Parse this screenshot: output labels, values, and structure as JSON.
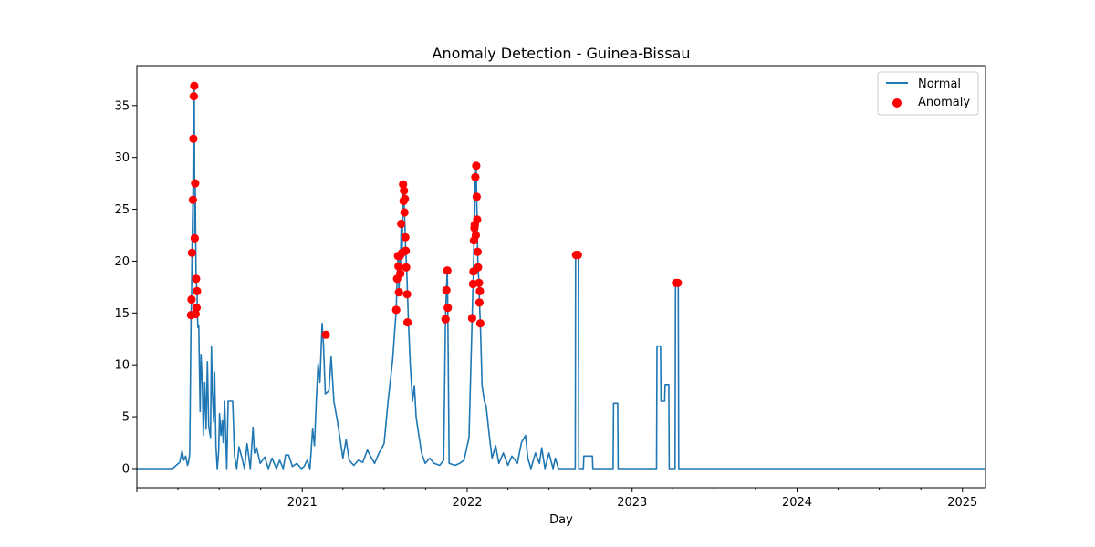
{
  "chart_data": {
    "type": "line",
    "title": "Anomaly Detection - Guinea-Bissau",
    "xlabel": "Day",
    "ylabel": "",
    "xlim": [
      "2020-01-01",
      "2025-02-21"
    ],
    "ylim": [
      -1.85,
      38.85
    ],
    "grid": false,
    "legend_position": "upper-right",
    "x_tick_labels": [
      "2021",
      "2022",
      "2023",
      "2024",
      "2025"
    ],
    "y_tick_labels": [
      "0",
      "5",
      "10",
      "15",
      "20",
      "25",
      "30",
      "35"
    ],
    "colors": {
      "normal": "#1f77b4",
      "anomaly": "#ff0000"
    },
    "series": [
      {
        "name": "Normal",
        "type": "line",
        "points": [
          [
            "2020-01-01",
            0
          ],
          [
            "2020-03-20",
            0
          ],
          [
            "2020-04-05",
            0.6
          ],
          [
            "2020-04-10",
            1.7
          ],
          [
            "2020-04-14",
            0.8
          ],
          [
            "2020-04-18",
            1.2
          ],
          [
            "2020-04-22",
            0.3
          ],
          [
            "2020-04-24",
            0.6
          ],
          [
            "2020-04-27",
            1.4
          ],
          [
            "2020-04-30",
            14.8
          ],
          [
            "2020-05-01",
            16.3
          ],
          [
            "2020-05-02",
            20.8
          ],
          [
            "2020-05-04",
            25.9
          ],
          [
            "2020-05-05",
            31.8
          ],
          [
            "2020-05-06",
            35.9
          ],
          [
            "2020-05-07",
            36.9
          ],
          [
            "2020-05-08",
            22.2
          ],
          [
            "2020-05-09",
            27.5
          ],
          [
            "2020-05-11",
            18.3
          ],
          [
            "2020-05-13",
            17.1
          ],
          [
            "2020-05-14",
            14.7
          ],
          [
            "2020-05-15",
            13.6
          ],
          [
            "2020-05-17",
            13.8
          ],
          [
            "2020-05-20",
            5.5
          ],
          [
            "2020-05-22",
            11
          ],
          [
            "2020-05-25",
            8
          ],
          [
            "2020-05-27",
            3.2
          ],
          [
            "2020-05-30",
            8.3
          ],
          [
            "2020-06-02",
            3.8
          ],
          [
            "2020-06-05",
            10.3
          ],
          [
            "2020-06-08",
            4.1
          ],
          [
            "2020-06-12",
            3
          ],
          [
            "2020-06-14",
            11.8
          ],
          [
            "2020-06-16",
            7.5
          ],
          [
            "2020-06-19",
            4.5
          ],
          [
            "2020-06-21",
            9.3
          ],
          [
            "2020-06-24",
            2.1
          ],
          [
            "2020-06-27",
            0
          ],
          [
            "2020-06-30",
            1.6
          ],
          [
            "2020-07-02",
            5.3
          ],
          [
            "2020-07-05",
            3.2
          ],
          [
            "2020-07-08",
            4.6
          ],
          [
            "2020-07-10",
            2.5
          ],
          [
            "2020-07-13",
            6.5
          ],
          [
            "2020-07-18",
            0
          ],
          [
            "2020-07-21",
            6.5
          ],
          [
            "2020-07-31",
            6.5
          ],
          [
            "2020-08-04",
            1.2
          ],
          [
            "2020-08-09",
            0
          ],
          [
            "2020-08-14",
            2.1
          ],
          [
            "2020-08-20",
            1.1
          ],
          [
            "2020-08-26",
            0
          ],
          [
            "2020-09-01",
            2.4
          ],
          [
            "2020-09-08",
            0
          ],
          [
            "2020-09-14",
            4
          ],
          [
            "2020-09-17",
            1.5
          ],
          [
            "2020-09-22",
            2
          ],
          [
            "2020-09-30",
            0.5
          ],
          [
            "2020-10-10",
            1.1
          ],
          [
            "2020-10-18",
            0
          ],
          [
            "2020-10-26",
            1
          ],
          [
            "2020-11-05",
            0
          ],
          [
            "2020-11-12",
            0.8
          ],
          [
            "2020-11-20",
            0
          ],
          [
            "2020-11-25",
            1.3
          ],
          [
            "2020-12-02",
            1.3
          ],
          [
            "2020-12-10",
            0.2
          ],
          [
            "2020-12-20",
            0.5
          ],
          [
            "2020-12-30",
            0
          ],
          [
            "2021-01-05",
            0.2
          ],
          [
            "2021-01-12",
            0.8
          ],
          [
            "2021-01-18",
            0
          ],
          [
            "2021-01-24",
            3.8
          ],
          [
            "2021-01-28",
            2.2
          ],
          [
            "2021-02-01",
            6.5
          ],
          [
            "2021-02-05",
            10.1
          ],
          [
            "2021-02-09",
            8.3
          ],
          [
            "2021-02-14",
            14
          ],
          [
            "2021-02-17",
            11.9
          ],
          [
            "2021-02-21",
            7.2
          ],
          [
            "2021-03-01",
            7.5
          ],
          [
            "2021-03-06",
            10.8
          ],
          [
            "2021-03-12",
            6.5
          ],
          [
            "2021-03-20",
            4.5
          ],
          [
            "2021-04-01",
            1
          ],
          [
            "2021-04-08",
            2.8
          ],
          [
            "2021-04-15",
            0.8
          ],
          [
            "2021-04-25",
            0.3
          ],
          [
            "2021-05-05",
            0.8
          ],
          [
            "2021-05-15",
            0.6
          ],
          [
            "2021-05-25",
            1.8
          ],
          [
            "2021-06-01",
            1.2
          ],
          [
            "2021-06-10",
            0.5
          ],
          [
            "2021-06-20",
            1.5
          ],
          [
            "2021-07-01",
            2.4
          ],
          [
            "2021-07-10",
            6.5
          ],
          [
            "2021-07-20",
            10.5
          ],
          [
            "2021-07-28",
            15.3
          ],
          [
            "2021-07-30",
            18.3
          ],
          [
            "2021-08-01",
            20.5
          ],
          [
            "2021-08-02",
            19.5
          ],
          [
            "2021-08-03",
            17
          ],
          [
            "2021-08-05",
            20.5
          ],
          [
            "2021-08-06",
            18.8
          ],
          [
            "2021-08-08",
            23.6
          ],
          [
            "2021-08-10",
            20.8
          ],
          [
            "2021-08-12",
            27.4
          ],
          [
            "2021-08-13",
            25.8
          ],
          [
            "2021-08-14",
            26.8
          ],
          [
            "2021-08-15",
            24.7
          ],
          [
            "2021-08-17",
            22.3
          ],
          [
            "2021-08-18",
            21
          ],
          [
            "2021-08-20",
            19.4
          ],
          [
            "2021-08-22",
            16.8
          ],
          [
            "2021-08-24",
            14.1
          ],
          [
            "2021-08-28",
            10
          ],
          [
            "2021-09-02",
            6.5
          ],
          [
            "2021-09-06",
            8
          ],
          [
            "2021-09-10",
            5
          ],
          [
            "2021-09-15",
            3.5
          ],
          [
            "2021-09-22",
            1.5
          ],
          [
            "2021-09-30",
            0.5
          ],
          [
            "2021-10-10",
            1
          ],
          [
            "2021-10-20",
            0.5
          ],
          [
            "2021-11-01",
            0.3
          ],
          [
            "2021-11-10",
            0.8
          ],
          [
            "2021-11-14",
            14.4
          ],
          [
            "2021-11-16",
            17.2
          ],
          [
            "2021-11-18",
            19.1
          ],
          [
            "2021-11-19",
            15.5
          ],
          [
            "2021-11-22",
            0.5
          ],
          [
            "2021-12-05",
            0.3
          ],
          [
            "2021-12-15",
            0.5
          ],
          [
            "2021-12-25",
            0.8
          ],
          [
            "2022-01-05",
            3
          ],
          [
            "2022-01-12",
            14.5
          ],
          [
            "2022-01-14",
            17.8
          ],
          [
            "2022-01-15",
            19
          ],
          [
            "2022-01-16",
            22
          ],
          [
            "2022-01-17",
            23.2
          ],
          [
            "2022-01-19",
            28.1
          ],
          [
            "2022-01-21",
            29.2
          ],
          [
            "2022-01-22",
            26.2
          ],
          [
            "2022-01-23",
            24
          ],
          [
            "2022-01-24",
            20.9
          ],
          [
            "2022-01-25",
            19.4
          ],
          [
            "2022-01-27",
            17.9
          ],
          [
            "2022-01-28",
            16
          ],
          [
            "2022-01-30",
            14
          ],
          [
            "2022-02-03",
            8
          ],
          [
            "2022-02-08",
            6.5
          ],
          [
            "2022-02-12",
            6
          ],
          [
            "2022-02-18",
            3.5
          ],
          [
            "2022-02-25",
            1
          ],
          [
            "2022-03-05",
            2.2
          ],
          [
            "2022-03-12",
            0.5
          ],
          [
            "2022-03-22",
            1.5
          ],
          [
            "2022-04-01",
            0.3
          ],
          [
            "2022-04-10",
            1.2
          ],
          [
            "2022-04-22",
            0.5
          ],
          [
            "2022-05-01",
            2.5
          ],
          [
            "2022-05-10",
            3.2
          ],
          [
            "2022-05-15",
            1
          ],
          [
            "2022-05-22",
            0
          ],
          [
            "2022-06-01",
            1.5
          ],
          [
            "2022-06-10",
            0.5
          ],
          [
            "2022-06-15",
            2
          ],
          [
            "2022-06-22",
            0
          ],
          [
            "2022-07-01",
            1.5
          ],
          [
            "2022-07-10",
            0
          ],
          [
            "2022-07-15",
            1
          ],
          [
            "2022-07-22",
            0
          ],
          [
            "2022-08-28",
            0
          ],
          [
            "2022-08-29",
            20.6
          ],
          [
            "2022-09-04",
            20.6
          ],
          [
            "2022-09-05",
            0
          ],
          [
            "2022-09-15",
            0
          ],
          [
            "2022-09-16",
            1.2
          ],
          [
            "2022-10-05",
            1.2
          ],
          [
            "2022-10-06",
            0
          ],
          [
            "2022-11-20",
            0
          ],
          [
            "2022-11-21",
            6.3
          ],
          [
            "2022-11-30",
            6.3
          ],
          [
            "2022-12-01",
            0
          ],
          [
            "2023-01-01",
            0
          ],
          [
            "2023-02-24",
            0
          ],
          [
            "2023-02-25",
            11.8
          ],
          [
            "2023-03-05",
            11.8
          ],
          [
            "2023-03-06",
            6.5
          ],
          [
            "2023-03-14",
            6.5
          ],
          [
            "2023-03-15",
            8.1
          ],
          [
            "2023-03-23",
            8.1
          ],
          [
            "2023-03-24",
            0
          ],
          [
            "2023-04-06",
            0
          ],
          [
            "2023-04-07",
            17.9
          ],
          [
            "2023-04-13",
            17.9
          ],
          [
            "2023-04-14",
            0
          ],
          [
            "2025-02-21",
            0
          ]
        ]
      },
      {
        "name": "Anomaly",
        "type": "scatter",
        "points": [
          [
            "2020-04-30",
            14.8
          ],
          [
            "2020-05-01",
            16.3
          ],
          [
            "2020-05-02",
            20.8
          ],
          [
            "2020-05-04",
            25.9
          ],
          [
            "2020-05-05",
            31.8
          ],
          [
            "2020-05-06",
            35.9
          ],
          [
            "2020-05-07",
            36.9
          ],
          [
            "2020-05-08",
            22.2
          ],
          [
            "2020-05-09",
            27.5
          ],
          [
            "2020-05-11",
            18.3
          ],
          [
            "2020-05-13",
            17.1
          ],
          [
            "2020-05-12",
            15.5
          ],
          [
            "2020-05-10",
            14.9
          ],
          [
            "2021-02-22",
            12.9
          ],
          [
            "2021-07-28",
            15.3
          ],
          [
            "2021-07-30",
            18.3
          ],
          [
            "2021-08-01",
            20.5
          ],
          [
            "2021-08-02",
            19.5
          ],
          [
            "2021-08-03",
            17
          ],
          [
            "2021-08-05",
            20.5
          ],
          [
            "2021-08-06",
            18.8
          ],
          [
            "2021-08-08",
            23.6
          ],
          [
            "2021-08-10",
            20.8
          ],
          [
            "2021-08-12",
            27.4
          ],
          [
            "2021-08-13",
            25.8
          ],
          [
            "2021-08-14",
            26.8
          ],
          [
            "2021-08-15",
            24.7
          ],
          [
            "2021-08-16",
            26
          ],
          [
            "2021-08-17",
            22.3
          ],
          [
            "2021-08-18",
            21
          ],
          [
            "2021-08-19",
            19.4
          ],
          [
            "2021-08-21",
            16.8
          ],
          [
            "2021-08-22",
            14.1
          ],
          [
            "2021-11-14",
            14.4
          ],
          [
            "2021-11-16",
            17.2
          ],
          [
            "2021-11-18",
            19.1
          ],
          [
            "2021-11-19",
            15.5
          ],
          [
            "2022-01-12",
            14.5
          ],
          [
            "2022-01-14",
            17.8
          ],
          [
            "2022-01-15",
            19
          ],
          [
            "2022-01-16",
            22
          ],
          [
            "2022-01-17",
            23.2
          ],
          [
            "2022-01-18",
            23.5
          ],
          [
            "2022-01-19",
            28.1
          ],
          [
            "2022-01-21",
            29.2
          ],
          [
            "2022-01-22",
            26.2
          ],
          [
            "2022-01-23",
            24
          ],
          [
            "2022-01-24",
            20.9
          ],
          [
            "2022-01-25",
            19.4
          ],
          [
            "2022-01-27",
            17.9
          ],
          [
            "2022-01-28",
            16
          ],
          [
            "2022-01-29",
            17.1
          ],
          [
            "2022-01-30",
            14
          ],
          [
            "2022-01-20",
            22.5
          ],
          [
            "2022-08-30",
            20.6
          ],
          [
            "2022-09-03",
            20.6
          ],
          [
            "2023-04-08",
            17.9
          ],
          [
            "2023-04-12",
            17.9
          ]
        ]
      }
    ]
  }
}
